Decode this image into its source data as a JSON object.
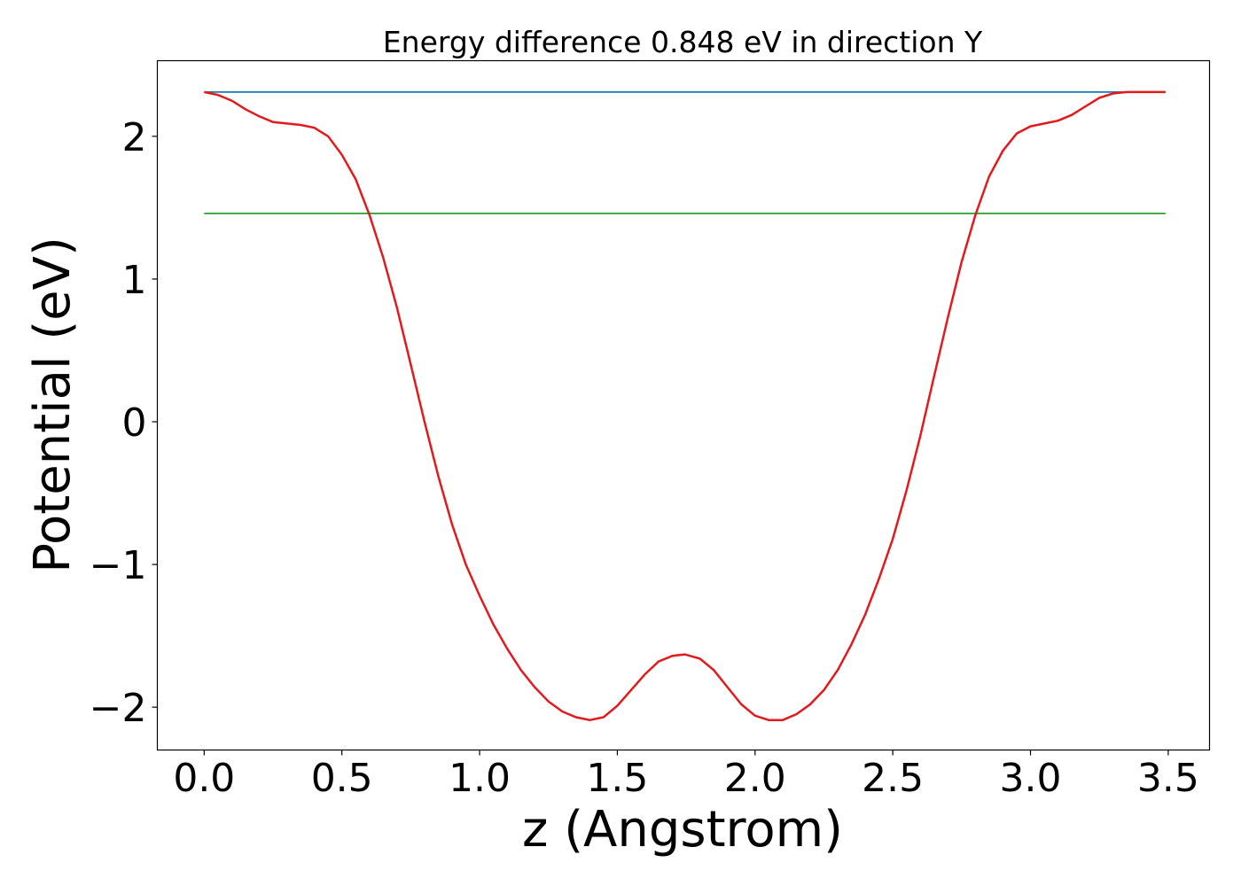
{
  "chart_data": {
    "type": "line",
    "title": "Energy difference 0.848 eV in direction Y",
    "xlabel": "z (Angstrom)",
    "ylabel": "Potential (eV)",
    "xlim": [
      -0.17,
      3.65
    ],
    "ylim": [
      -2.3,
      2.53
    ],
    "xticks": [
      0.0,
      0.5,
      1.0,
      1.5,
      2.0,
      2.5,
      3.0,
      3.5
    ],
    "xtick_labels": [
      "0.0",
      "0.5",
      "1.0",
      "1.5",
      "2.0",
      "2.5",
      "3.0",
      "3.5"
    ],
    "yticks": [
      -2,
      -1,
      0,
      1,
      2
    ],
    "ytick_labels": [
      "−2",
      "−1",
      "0",
      "1",
      "2"
    ],
    "grid": false,
    "series": [
      {
        "color": "#1f77b4",
        "x": [
          0.0,
          3.49
        ],
        "y": [
          2.31,
          2.31
        ]
      },
      {
        "color": "#2ca02c",
        "x": [
          0.0,
          3.49
        ],
        "y": [
          1.46,
          1.46
        ]
      },
      {
        "color": "#e31a1c",
        "x": [
          0.0,
          0.05,
          0.1,
          0.15,
          0.2,
          0.25,
          0.3,
          0.35,
          0.4,
          0.45,
          0.5,
          0.55,
          0.6,
          0.65,
          0.7,
          0.75,
          0.8,
          0.85,
          0.9,
          0.95,
          1.0,
          1.05,
          1.1,
          1.15,
          1.2,
          1.25,
          1.3,
          1.35,
          1.4,
          1.45,
          1.5,
          1.55,
          1.6,
          1.65,
          1.7,
          1.745,
          1.8,
          1.85,
          1.9,
          1.95,
          2.0,
          2.05,
          2.1,
          2.15,
          2.2,
          2.25,
          2.3,
          2.35,
          2.4,
          2.45,
          2.5,
          2.55,
          2.6,
          2.65,
          2.7,
          2.75,
          2.8,
          2.85,
          2.9,
          2.95,
          3.0,
          3.05,
          3.1,
          3.15,
          3.2,
          3.25,
          3.3,
          3.35,
          3.4,
          3.45,
          3.49
        ],
        "y": [
          2.31,
          2.29,
          2.25,
          2.19,
          2.14,
          2.1,
          2.09,
          2.08,
          2.06,
          2.0,
          1.87,
          1.7,
          1.45,
          1.15,
          0.8,
          0.4,
          0.0,
          -0.38,
          -0.72,
          -1.0,
          -1.22,
          -1.42,
          -1.59,
          -1.74,
          -1.86,
          -1.96,
          -2.03,
          -2.07,
          -2.09,
          -2.07,
          -1.99,
          -1.88,
          -1.77,
          -1.68,
          -1.64,
          -1.63,
          -1.66,
          -1.74,
          -1.86,
          -1.98,
          -2.06,
          -2.09,
          -2.09,
          -2.05,
          -1.98,
          -1.88,
          -1.74,
          -1.56,
          -1.35,
          -1.1,
          -0.82,
          -0.48,
          -0.1,
          0.32,
          0.73,
          1.12,
          1.45,
          1.72,
          1.9,
          2.02,
          2.07,
          2.09,
          2.11,
          2.15,
          2.21,
          2.27,
          2.3,
          2.31,
          2.31,
          2.31,
          2.31
        ]
      }
    ]
  }
}
